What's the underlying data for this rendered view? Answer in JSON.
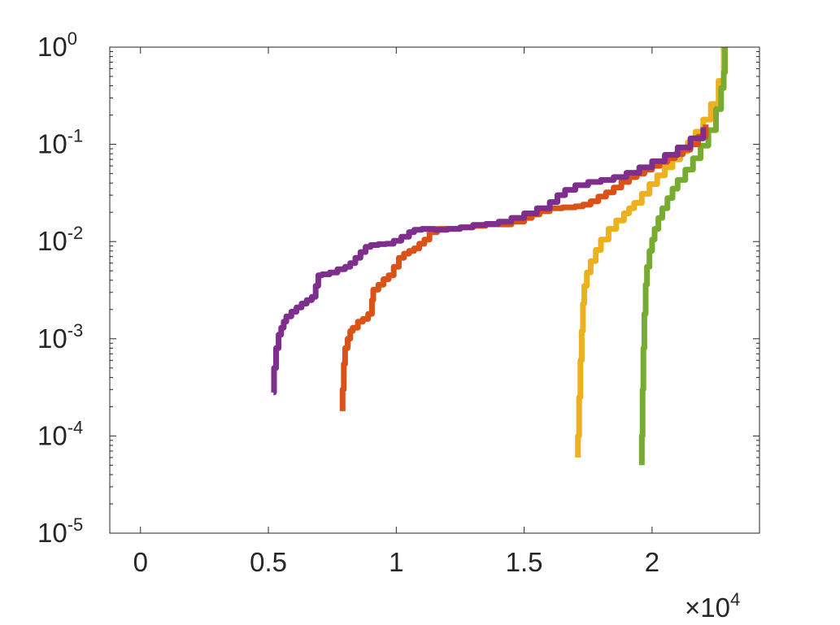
{
  "chart_data": {
    "type": "line",
    "title": "",
    "xlabel": "",
    "ylabel": "",
    "x_multiplier_label": {
      "base": "×10",
      "exp": "4"
    },
    "xlim": [
      -1200,
      24200
    ],
    "ylim": [
      1e-05,
      1
    ],
    "yscale": "log",
    "grid": false,
    "x_ticks": [
      {
        "value": 0,
        "label": "0"
      },
      {
        "value": 5000,
        "label": "0.5"
      },
      {
        "value": 10000,
        "label": "1"
      },
      {
        "value": 15000,
        "label": "1.5"
      },
      {
        "value": 20000,
        "label": "2"
      }
    ],
    "y_ticks": [
      {
        "value": 1e-05,
        "base": "10",
        "exp": "-5"
      },
      {
        "value": 0.0001,
        "base": "10",
        "exp": "-4"
      },
      {
        "value": 0.001,
        "base": "10",
        "exp": "-3"
      },
      {
        "value": 0.01,
        "base": "10",
        "exp": "-2"
      },
      {
        "value": 0.1,
        "base": "10",
        "exp": "-1"
      },
      {
        "value": 1,
        "base": "10",
        "exp": "0"
      }
    ],
    "series": [
      {
        "color": "#EDB120",
        "x": [
          17100,
          17100,
          17150,
          17200,
          17250,
          17300,
          17350,
          17450,
          17600,
          17800,
          18000,
          18300,
          18600,
          18900,
          19100,
          19300,
          19600,
          19900,
          20200,
          20500,
          20800,
          21100,
          21400,
          21700,
          22000,
          22300,
          22600,
          22800
        ],
        "y": [
          6e-05,
          0.0001,
          0.00025,
          0.0006,
          0.0012,
          0.0023,
          0.0035,
          0.0048,
          0.0063,
          0.0082,
          0.0105,
          0.0135,
          0.0165,
          0.0195,
          0.022,
          0.025,
          0.031,
          0.039,
          0.048,
          0.058,
          0.07,
          0.085,
          0.105,
          0.135,
          0.18,
          0.26,
          0.45,
          1.0
        ]
      },
      {
        "color": "#77AC30",
        "x": [
          19600,
          19600,
          19630,
          19660,
          19700,
          19750,
          19800,
          19900,
          20000,
          20100,
          20250,
          20400,
          20600,
          20800,
          21000,
          21300,
          21600,
          21900,
          22200,
          22500,
          22700,
          22800,
          22850,
          22850
        ],
        "y": [
          5e-05,
          0.0001,
          0.0003,
          0.0008,
          0.0018,
          0.0036,
          0.0055,
          0.008,
          0.0105,
          0.0135,
          0.0175,
          0.022,
          0.028,
          0.035,
          0.043,
          0.055,
          0.072,
          0.097,
          0.14,
          0.23,
          0.38,
          0.55,
          0.75,
          1.0
        ]
      },
      {
        "color": "#D95319",
        "x": [
          7900,
          7900,
          7950,
          8000,
          8100,
          8200,
          8300,
          8500,
          8700,
          8900,
          9050,
          9100,
          9300,
          9500,
          9700,
          9900,
          10100,
          10300,
          10500,
          10700,
          10900,
          11100,
          11300,
          11600,
          12000,
          12500,
          13000,
          13500,
          14000,
          14500,
          15000,
          15300,
          15600,
          16000,
          16500,
          17000,
          17300,
          17600,
          17900,
          18200,
          18500,
          18800,
          19100,
          19400,
          19700,
          20000,
          20300,
          20600,
          20900,
          21200,
          21500,
          21800,
          22100
        ],
        "y": [
          0.00018,
          0.0003,
          0.00055,
          0.0008,
          0.001,
          0.0012,
          0.0013,
          0.0015,
          0.0016,
          0.0018,
          0.0025,
          0.0032,
          0.0036,
          0.0041,
          0.0045,
          0.0055,
          0.0068,
          0.0075,
          0.008,
          0.0085,
          0.0095,
          0.0105,
          0.0125,
          0.0135,
          0.0135,
          0.014,
          0.0145,
          0.015,
          0.015,
          0.016,
          0.0175,
          0.019,
          0.0205,
          0.022,
          0.0225,
          0.023,
          0.024,
          0.026,
          0.029,
          0.032,
          0.036,
          0.041,
          0.046,
          0.05,
          0.055,
          0.06,
          0.066,
          0.072,
          0.079,
          0.088,
          0.1,
          0.12,
          0.16
        ]
      },
      {
        "color": "#7E2F8E",
        "x": [
          5200,
          5220,
          5300,
          5400,
          5500,
          5600,
          5700,
          5900,
          6100,
          6300,
          6500,
          6700,
          6850,
          6950,
          7100,
          7400,
          7700,
          8000,
          8200,
          8400,
          8600,
          8800,
          9000,
          9300,
          9600,
          9900,
          10200,
          10500,
          10700,
          11000,
          11500,
          12000,
          12500,
          13000,
          13500,
          14000,
          14500,
          15000,
          15500,
          16000,
          16300,
          16600,
          17000,
          17500,
          18000,
          18500,
          19000,
          19500,
          20000,
          20500,
          21000,
          21500,
          22000
        ],
        "y": [
          0.00028,
          0.0005,
          0.0008,
          0.0011,
          0.0013,
          0.0015,
          0.0017,
          0.0019,
          0.0021,
          0.0023,
          0.0025,
          0.0027,
          0.0035,
          0.0045,
          0.0046,
          0.0048,
          0.0052,
          0.0055,
          0.006,
          0.0068,
          0.0078,
          0.0088,
          0.0092,
          0.0094,
          0.0095,
          0.0102,
          0.0112,
          0.0125,
          0.0132,
          0.0135,
          0.0132,
          0.0135,
          0.014,
          0.0148,
          0.0152,
          0.016,
          0.0175,
          0.0195,
          0.022,
          0.0255,
          0.03,
          0.034,
          0.038,
          0.041,
          0.043,
          0.046,
          0.051,
          0.058,
          0.067,
          0.078,
          0.093,
          0.115,
          0.15
        ]
      }
    ]
  }
}
